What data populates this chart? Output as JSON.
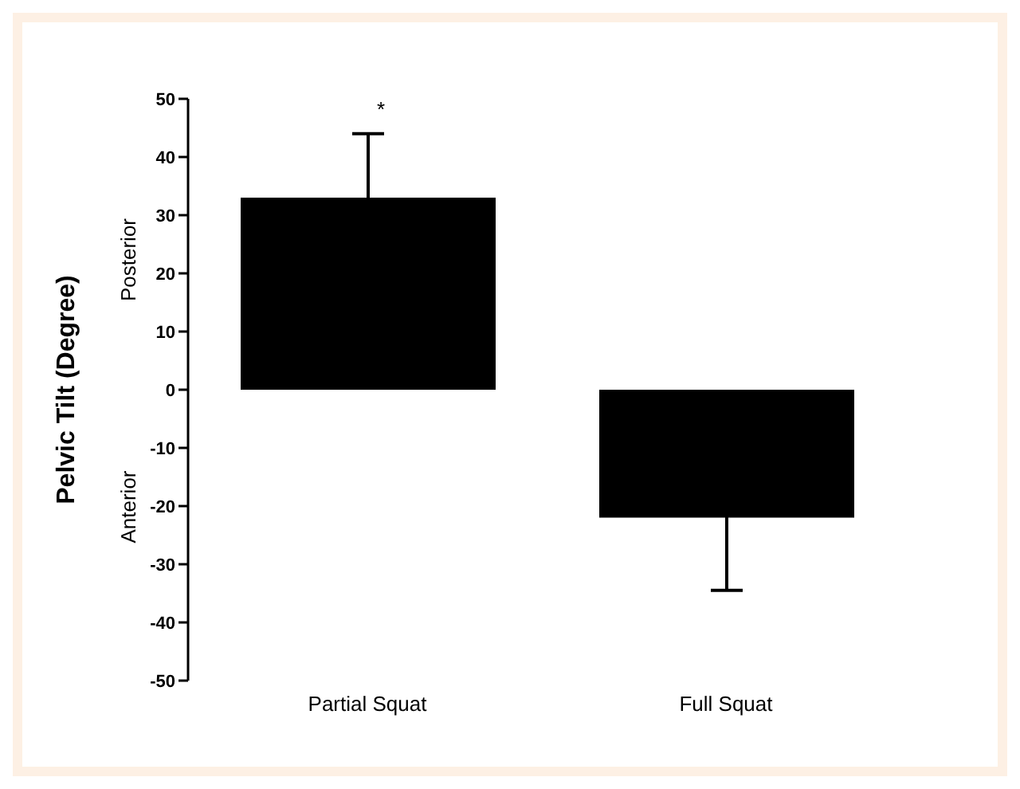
{
  "chart_data": {
    "type": "bar",
    "ylabel": "Pelvic Tilt (Degree)",
    "categories": [
      "Partial Squat",
      "Full Squat"
    ],
    "values": [
      33,
      -22
    ],
    "color": "#000000",
    "errors": [
      11,
      12.5
    ],
    "ylim": [
      -50,
      50
    ],
    "yticks": [
      -50,
      -40,
      -30,
      -20,
      -10,
      0,
      10,
      20,
      30,
      40,
      50
    ],
    "grid": false,
    "annotations": [
      "*",
      "Posterior",
      "Anterior"
    ]
  }
}
